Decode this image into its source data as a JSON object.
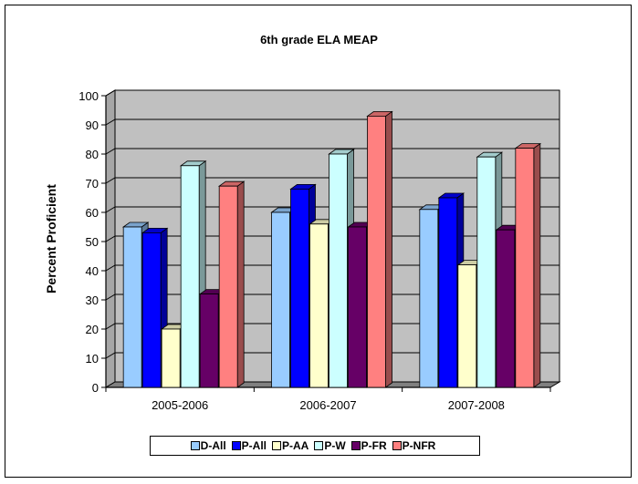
{
  "chart_data": {
    "type": "bar",
    "title": "6th grade ELA MEAP",
    "ylabel": "Percent Proficient",
    "xlabel": "",
    "ylim": [
      0,
      100
    ],
    "yticks": [
      0,
      10,
      20,
      30,
      40,
      50,
      60,
      70,
      80,
      90,
      100
    ],
    "categories": [
      "2005-2006",
      "2006-2007",
      "2007-2008"
    ],
    "grid": true,
    "legend_position": "bottom",
    "series": [
      {
        "name": "D-All",
        "color": "#99ccff",
        "values": [
          55,
          60,
          61
        ]
      },
      {
        "name": "P-All",
        "color": "#0000ff",
        "values": [
          53,
          68,
          65
        ]
      },
      {
        "name": "P-AA",
        "color": "#ffffcc",
        "values": [
          20,
          56,
          42
        ]
      },
      {
        "name": "P-W",
        "color": "#ccffff",
        "values": [
          76,
          80,
          79
        ]
      },
      {
        "name": "P-FR",
        "color": "#660066",
        "values": [
          32,
          55,
          54
        ]
      },
      {
        "name": "P-NFR",
        "color": "#ff8080",
        "values": [
          69,
          93,
          82
        ]
      }
    ]
  }
}
